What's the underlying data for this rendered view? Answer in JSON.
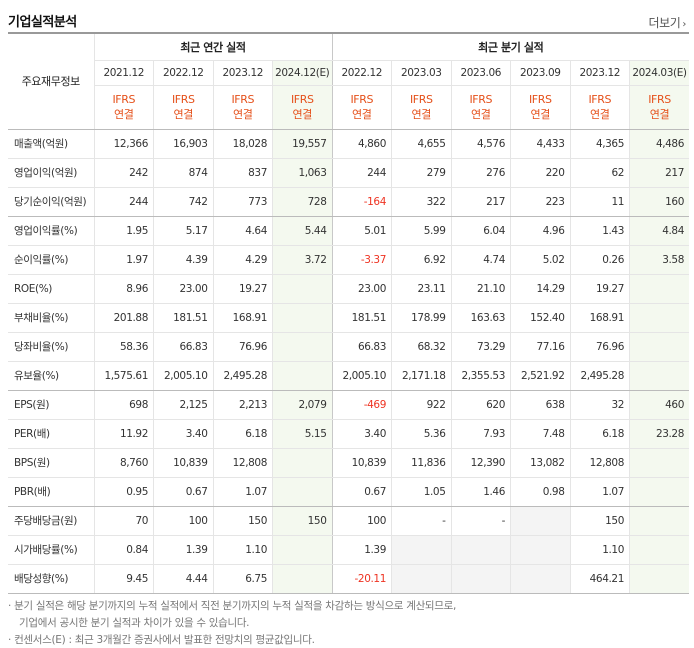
{
  "title": "기업실적분석",
  "more_label": "더보기",
  "header": {
    "corner": "주요재무정보",
    "annual_group": "최근 연간 실적",
    "quarter_group": "최근 분기 실적",
    "periods": [
      "2021.12",
      "2022.12",
      "2023.12",
      "2024.12(E)",
      "2022.12",
      "2023.03",
      "2023.06",
      "2023.09",
      "2023.12",
      "2024.03(E)"
    ],
    "basis_top": "IFRS",
    "basis_bottom": "연결"
  },
  "rows": [
    {
      "label": "매출액(억원)",
      "values": [
        "12,366",
        "16,903",
        "18,028",
        "19,557",
        "4,860",
        "4,655",
        "4,576",
        "4,433",
        "4,365",
        "4,486"
      ]
    },
    {
      "label": "영업이익(억원)",
      "values": [
        "242",
        "874",
        "837",
        "1,063",
        "244",
        "279",
        "276",
        "220",
        "62",
        "217"
      ]
    },
    {
      "label": "당기순이익(억원)",
      "values": [
        "244",
        "742",
        "773",
        "728",
        "-164",
        "322",
        "217",
        "223",
        "11",
        "160"
      ]
    },
    {
      "label": "영업이익률(%)",
      "values": [
        "1.95",
        "5.17",
        "4.64",
        "5.44",
        "5.01",
        "5.99",
        "6.04",
        "4.96",
        "1.43",
        "4.84"
      ]
    },
    {
      "label": "순이익률(%)",
      "values": [
        "1.97",
        "4.39",
        "4.29",
        "3.72",
        "-3.37",
        "6.92",
        "4.74",
        "5.02",
        "0.26",
        "3.58"
      ]
    },
    {
      "label": "ROE(%)",
      "values": [
        "8.96",
        "23.00",
        "19.27",
        "",
        "23.00",
        "23.11",
        "21.10",
        "14.29",
        "19.27",
        ""
      ]
    },
    {
      "label": "부채비율(%)",
      "values": [
        "201.88",
        "181.51",
        "168.91",
        "",
        "181.51",
        "178.99",
        "163.63",
        "152.40",
        "168.91",
        ""
      ]
    },
    {
      "label": "당좌비율(%)",
      "values": [
        "58.36",
        "66.83",
        "76.96",
        "",
        "66.83",
        "68.32",
        "73.29",
        "77.16",
        "76.96",
        ""
      ]
    },
    {
      "label": "유보율(%)",
      "values": [
        "1,575.61",
        "2,005.10",
        "2,495.28",
        "",
        "2,005.10",
        "2,171.18",
        "2,355.53",
        "2,521.92",
        "2,495.28",
        ""
      ]
    },
    {
      "label": "EPS(원)",
      "values": [
        "698",
        "2,125",
        "2,213",
        "2,079",
        "-469",
        "922",
        "620",
        "638",
        "32",
        "460"
      ]
    },
    {
      "label": "PER(배)",
      "values": [
        "11.92",
        "3.40",
        "6.18",
        "5.15",
        "3.40",
        "5.36",
        "7.93",
        "7.48",
        "6.18",
        "23.28"
      ]
    },
    {
      "label": "BPS(원)",
      "values": [
        "8,760",
        "10,839",
        "12,808",
        "",
        "10,839",
        "11,836",
        "12,390",
        "13,082",
        "12,808",
        ""
      ]
    },
    {
      "label": "PBR(배)",
      "values": [
        "0.95",
        "0.67",
        "1.07",
        "",
        "0.67",
        "1.05",
        "1.46",
        "0.98",
        "1.07",
        ""
      ]
    },
    {
      "label": "주당배당금(원)",
      "values": [
        "70",
        "100",
        "150",
        "150",
        "100",
        "-",
        "-",
        "",
        "150",
        ""
      ]
    },
    {
      "label": "시가배당률(%)",
      "values": [
        "0.84",
        "1.39",
        "1.10",
        "",
        "1.39",
        "",
        "",
        "",
        "1.10",
        ""
      ]
    },
    {
      "label": "배당성향(%)",
      "values": [
        "9.45",
        "4.44",
        "6.75",
        "",
        "-20.11",
        "",
        "",
        "",
        "464.21",
        ""
      ]
    }
  ],
  "notes": [
    "· 분기 실적은 해당 분기까지의 누적 실적에서 직전 분기까지의 누적 실적을 차감하는 방식으로 계산되므로,",
    "기업에서 공시한 분기 실적과 차이가 있을 수 있습니다.",
    "· 컨센서스(E) : 최근 3개월간 증권사에서 발표한 전망치의 평균값입니다."
  ],
  "colors": {
    "ifrs": "#e5501a",
    "negative": "#ee3322",
    "estimate_bg": "#f4f9ef",
    "empty_bg": "#f4f4f4"
  }
}
